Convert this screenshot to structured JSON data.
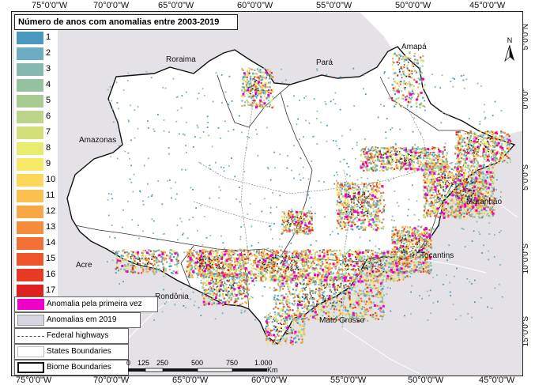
{
  "legend": {
    "title": "Número de anos com anomalias entre 2003-2019",
    "classes": [
      {
        "label": "1",
        "color": "#4a97c0"
      },
      {
        "label": "2",
        "color": "#6cadc4"
      },
      {
        "label": "3",
        "color": "#85b8ae"
      },
      {
        "label": "4",
        "color": "#95c29e"
      },
      {
        "label": "5",
        "color": "#a8cb93"
      },
      {
        "label": "6",
        "color": "#bcd58a"
      },
      {
        "label": "7",
        "color": "#d3e07a"
      },
      {
        "label": "8",
        "color": "#e7ec6e"
      },
      {
        "label": "9",
        "color": "#f7ea68"
      },
      {
        "label": "10",
        "color": "#fbd75a"
      },
      {
        "label": "11",
        "color": "#fbc04e"
      },
      {
        "label": "12",
        "color": "#f9a644"
      },
      {
        "label": "13",
        "color": "#f68c3c"
      },
      {
        "label": "14",
        "color": "#f27033"
      },
      {
        "label": "15",
        "color": "#ee552b"
      },
      {
        "label": "16",
        "color": "#e83b24"
      },
      {
        "label": "17",
        "color": "#e0201e"
      }
    ],
    "first_time": {
      "label": "Anomalia pela primeira vez",
      "color": "#ee00c8"
    },
    "anomaly_2019": {
      "label": "Anomalias em 2019"
    },
    "federal_highways": {
      "label": "Federal highways"
    },
    "states": {
      "label": "States Boundaries"
    },
    "biome": {
      "label": "Biome Boundaries"
    }
  },
  "axes": {
    "top_ticks": [
      "75°0'0\"W",
      "70°0'0\"W",
      "65°0'0\"W",
      "60°0'0\"W",
      "55°0'0\"W",
      "50°0'0\"W",
      "45°0'0\"W"
    ],
    "bottom_ticks": [
      "75°0'0\"W",
      "70°0'0\"W",
      "65°0'0\"W",
      "60°0'0\"W",
      "55°0'0\"W",
      "50°0'0\"W",
      "45°0'0\"W"
    ],
    "right_ticks": [
      "5°0'0\"N",
      "0°0'0\"",
      "5°0'0\"S",
      "10°0'0\"S",
      "15°0'0\"S"
    ]
  },
  "scale": {
    "labels": [
      "0",
      "125",
      "250",
      "500",
      "750",
      "1.000"
    ],
    "unit": "Km"
  },
  "north": "N",
  "places": {
    "roraima": "Roraima",
    "para": "Pará",
    "amapa": "Amapá",
    "amazonas": "Amazonas",
    "maranhao": "Maranhão",
    "tocantins": "Tocantins",
    "acre": "Acre",
    "rondonia": "Rondônia",
    "mato_grosso": "Mato Grosso"
  }
}
